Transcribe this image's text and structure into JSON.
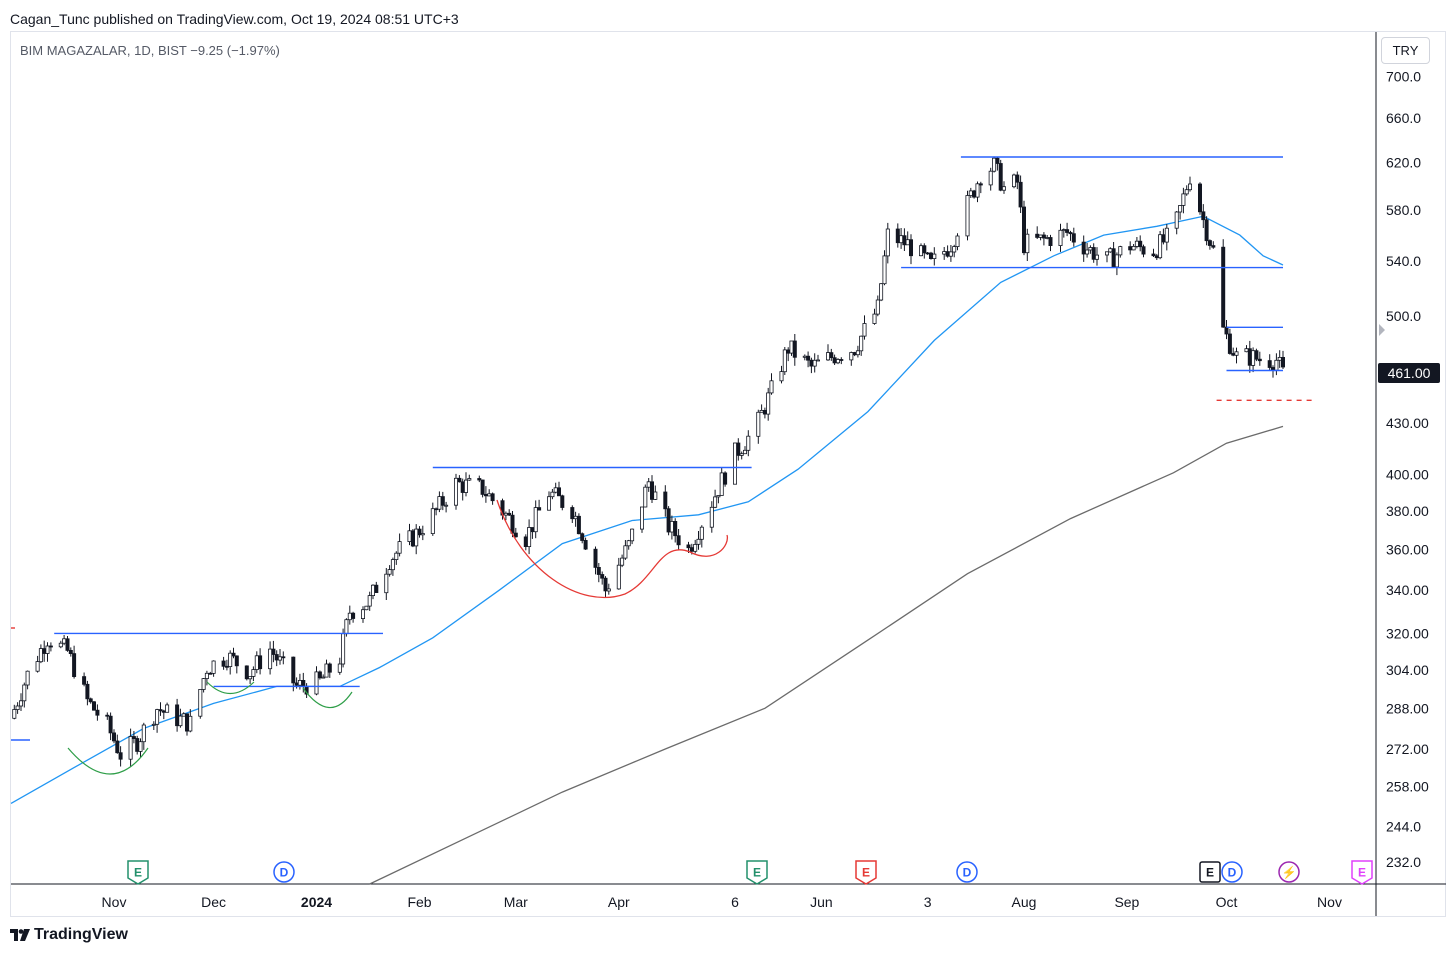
{
  "header": {
    "attribution": "Cagan_Tunc published on TradingView.com, Oct 19, 2024 08:51 UTC+3"
  },
  "symbol": {
    "info": "BIM MAGAZALAR, 1D, BIST  −9.25 (−1.97%)"
  },
  "currency_button": "TRY",
  "last_price": "461.00",
  "footer": {
    "brand": "TradingView"
  },
  "colors": {
    "candle": "#131722",
    "ma50": "#2196f3",
    "ma200": "#6b6b6b",
    "lines": "#2962ff",
    "cup_red": "#e53935",
    "cup_green": "#2e9e48",
    "target_dash": "#e53935"
  },
  "events": [
    {
      "type": "earnings",
      "letter": "E",
      "color": "#22906b",
      "date": "Nov 10"
    },
    {
      "type": "dividend",
      "letter": "D",
      "color": "#2962ff",
      "date": "Dec 14"
    },
    {
      "type": "earnings",
      "letter": "E",
      "color": "#22906b",
      "date": "May 5"
    },
    {
      "type": "earnings",
      "letter": "E",
      "color": "#e53935",
      "date": "Jun 5"
    },
    {
      "type": "dividend",
      "letter": "D",
      "color": "#2962ff",
      "date": "Jul 16"
    },
    {
      "type": "earnings",
      "letter": "E",
      "color": "#131722",
      "date": "Sep 24"
    },
    {
      "type": "dividend",
      "letter": "D",
      "color": "#2962ff",
      "date": "Sep 26"
    },
    {
      "type": "split",
      "letter": "⚡",
      "color": "#9c27b0",
      "date": "Oct 20"
    },
    {
      "type": "earnings",
      "letter": "E",
      "color": "#e040fb",
      "date": "Nov 8"
    }
  ],
  "chart_data": {
    "type": "candlestick",
    "title": "",
    "ylabel": "",
    "xlabel": "",
    "y_scale": "log",
    "ylim": [
      225,
      745
    ],
    "y_ticks": [
      "700.0",
      "660.0",
      "620.0",
      "580.0",
      "540.0",
      "500.0",
      "430.00",
      "400.00",
      "380.00",
      "360.00",
      "340.00",
      "320.00",
      "304.00",
      "288.00",
      "272.00",
      "258.00",
      "244.0",
      "232.0"
    ],
    "x_ticks": [
      {
        "label": "Nov",
        "date": "2023-11-01",
        "bold": false
      },
      {
        "label": "Dec",
        "date": "2023-12-01",
        "bold": false
      },
      {
        "label": "2024",
        "date": "2024-01-01",
        "bold": true
      },
      {
        "label": "Feb",
        "date": "2024-02-01",
        "bold": false
      },
      {
        "label": "Mar",
        "date": "2024-03-01",
        "bold": false
      },
      {
        "label": "Apr",
        "date": "2024-04-01",
        "bold": false
      },
      {
        "label": "6",
        "date": "2024-05-06",
        "bold": false
      },
      {
        "label": "Jun",
        "date": "2024-06-01",
        "bold": false
      },
      {
        "label": "3",
        "date": "2024-07-03",
        "bold": false
      },
      {
        "label": "Aug",
        "date": "2024-08-01",
        "bold": false
      },
      {
        "label": "Sep",
        "date": "2024-09-01",
        "bold": false
      },
      {
        "label": "Oct",
        "date": "2024-10-01",
        "bold": false
      },
      {
        "label": "Nov",
        "date": "2024-11-01",
        "bold": false
      }
    ],
    "x_range": [
      "2023-10-01",
      "2024-11-15"
    ],
    "price_path": [
      [
        "2023-10-01",
        284
      ],
      [
        "2023-10-06",
        302
      ],
      [
        "2023-10-12",
        318
      ],
      [
        "2023-10-18",
        312
      ],
      [
        "2023-10-24",
        291
      ],
      [
        "2023-10-30",
        281
      ],
      [
        "2023-11-03",
        270
      ],
      [
        "2023-11-08",
        275
      ],
      [
        "2023-11-14",
        288
      ],
      [
        "2023-11-20",
        284
      ],
      [
        "2023-11-24",
        282
      ],
      [
        "2023-11-29",
        305
      ],
      [
        "2023-12-05",
        310
      ],
      [
        "2023-12-12",
        303
      ],
      [
        "2023-12-18",
        313
      ],
      [
        "2023-12-26",
        297
      ],
      [
        "2024-01-02",
        299
      ],
      [
        "2024-01-08",
        309
      ],
      [
        "2024-01-11",
        330
      ],
      [
        "2024-01-17",
        335
      ],
      [
        "2024-01-23",
        355
      ],
      [
        "2024-01-31",
        368
      ],
      [
        "2024-02-06",
        380
      ],
      [
        "2024-02-12",
        395
      ],
      [
        "2024-02-20",
        392
      ],
      [
        "2024-02-27",
        378
      ],
      [
        "2024-03-04",
        366
      ],
      [
        "2024-03-11",
        390
      ],
      [
        "2024-03-18",
        381
      ],
      [
        "2024-03-25",
        352
      ],
      [
        "2024-03-28",
        340
      ],
      [
        "2024-04-04",
        362
      ],
      [
        "2024-04-10",
        396
      ],
      [
        "2024-04-16",
        372
      ],
      [
        "2024-04-22",
        360
      ],
      [
        "2024-04-29",
        385
      ],
      [
        "2024-05-06",
        412
      ],
      [
        "2024-05-12",
        426
      ],
      [
        "2024-05-17",
        450
      ],
      [
        "2024-05-22",
        478
      ],
      [
        "2024-05-29",
        465
      ],
      [
        "2024-06-05",
        473
      ],
      [
        "2024-06-11",
        478
      ],
      [
        "2024-06-18",
        505
      ],
      [
        "2024-06-21",
        560
      ],
      [
        "2024-06-27",
        553
      ],
      [
        "2024-07-04",
        537
      ],
      [
        "2024-07-10",
        553
      ],
      [
        "2024-07-15",
        585
      ],
      [
        "2024-07-19",
        610
      ],
      [
        "2024-07-23",
        617
      ],
      [
        "2024-07-26",
        598
      ],
      [
        "2024-07-30",
        603
      ],
      [
        "2024-08-01",
        553
      ],
      [
        "2024-08-08",
        557
      ],
      [
        "2024-08-14",
        562
      ],
      [
        "2024-08-20",
        550
      ],
      [
        "2024-08-26",
        540
      ],
      [
        "2024-09-02",
        552
      ],
      [
        "2024-09-09",
        548
      ],
      [
        "2024-09-15",
        562
      ],
      [
        "2024-09-20",
        609
      ],
      [
        "2024-09-24",
        572
      ],
      [
        "2024-09-27",
        548
      ],
      [
        "2024-09-30",
        490
      ],
      [
        "2024-10-04",
        472
      ],
      [
        "2024-10-08",
        472
      ],
      [
        "2024-10-12",
        470
      ],
      [
        "2024-10-16",
        470
      ],
      [
        "2024-10-18",
        461
      ]
    ],
    "ma50": [
      [
        "2023-10-01",
        252
      ],
      [
        "2023-10-20",
        265
      ],
      [
        "2023-11-10",
        280
      ],
      [
        "2023-12-01",
        290
      ],
      [
        "2023-12-20",
        297
      ],
      [
        "2024-01-08",
        297
      ],
      [
        "2024-01-20",
        305
      ],
      [
        "2024-02-05",
        318
      ],
      [
        "2024-02-25",
        340
      ],
      [
        "2024-03-15",
        363
      ],
      [
        "2024-04-05",
        375
      ],
      [
        "2024-04-25",
        378
      ],
      [
        "2024-05-10",
        385
      ],
      [
        "2024-05-25",
        403
      ],
      [
        "2024-06-15",
        437
      ],
      [
        "2024-07-05",
        483
      ],
      [
        "2024-07-25",
        524
      ],
      [
        "2024-08-10",
        544
      ],
      [
        "2024-08-25",
        560
      ],
      [
        "2024-09-10",
        567
      ],
      [
        "2024-09-24",
        575
      ],
      [
        "2024-10-05",
        560
      ],
      [
        "2024-10-12",
        544
      ],
      [
        "2024-10-18",
        537
      ]
    ],
    "ma200": [
      [
        "2024-01-17",
        225
      ],
      [
        "2024-02-15",
        240
      ],
      [
        "2024-03-15",
        256
      ],
      [
        "2024-04-15",
        272
      ],
      [
        "2024-05-15",
        288
      ],
      [
        "2024-06-15",
        317
      ],
      [
        "2024-07-15",
        348
      ],
      [
        "2024-08-15",
        376
      ],
      [
        "2024-09-15",
        401
      ],
      [
        "2024-10-01",
        418
      ],
      [
        "2024-10-18",
        428
      ]
    ],
    "annotations": {
      "resistance_lines": [
        {
          "from": "2023-10-14",
          "to": "2024-01-21",
          "price": 320
        },
        {
          "from": "2024-02-05",
          "to": "2024-05-11",
          "price": 404
        },
        {
          "from": "2024-07-13",
          "to": "2024-10-18",
          "price": 625
        },
        {
          "from": "2024-10-01",
          "to": "2024-10-18",
          "price": 492
        }
      ],
      "support_lines": [
        {
          "from": "2023-12-01",
          "to": "2024-01-14",
          "price": 297
        },
        {
          "from": "2024-06-25",
          "to": "2024-10-18",
          "price": 535
        },
        {
          "from": "2024-10-01",
          "to": "2024-10-18",
          "price": 463
        }
      ],
      "target_line": {
        "from": "2024-09-28",
        "to": "2024-10-27",
        "price": 444
      }
    }
  }
}
